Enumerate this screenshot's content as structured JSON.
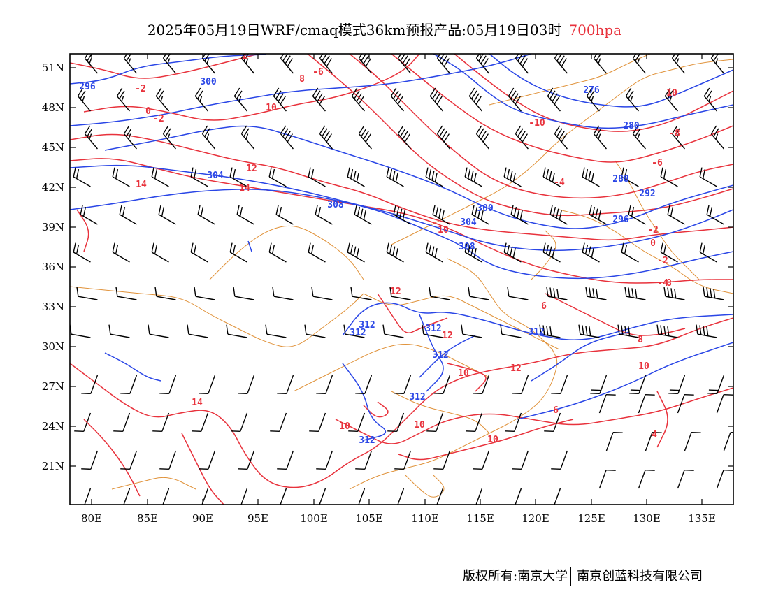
{
  "title": {
    "main": "2025年05月19日WRF/cmaq模式36km预报产品:05月19日03时",
    "level": "700hpa"
  },
  "axes": {
    "lat_ticks": [
      "51N",
      "48N",
      "45N",
      "42N",
      "39N",
      "36N",
      "33N",
      "30N",
      "27N",
      "24N",
      "21N"
    ],
    "lon_ticks": [
      "80E",
      "85E",
      "90E",
      "95E",
      "100E",
      "105E",
      "110E",
      "115E",
      "120E",
      "125E",
      "130E",
      "135E"
    ]
  },
  "credit": {
    "left": "版权所有:南京大学",
    "right": "南京创蓝科技有限公司"
  },
  "colors": {
    "height_contour": "#2a46e6",
    "temp_contour": "#e8323c",
    "boundary": "#e0923a",
    "wind_barb": "#000000"
  },
  "height_labels": [
    "296",
    "300",
    "304",
    "308",
    "280",
    "276",
    "288",
    "292",
    "296",
    "300",
    "304",
    "308",
    "312",
    "312",
    "312",
    "312",
    "312",
    "312",
    "312"
  ],
  "temp_labels": [
    "-6",
    "-2",
    "0",
    "-2",
    "2",
    "8",
    "10",
    "12",
    "14",
    "14",
    "12",
    "10",
    "12",
    "-10",
    "-4",
    "-6",
    "-8",
    "10",
    "-2",
    "0",
    "-2",
    "-4",
    "8",
    "6",
    "8",
    "10",
    "10",
    "12",
    "14",
    "10",
    "10",
    "10",
    "6",
    "4"
  ]
}
